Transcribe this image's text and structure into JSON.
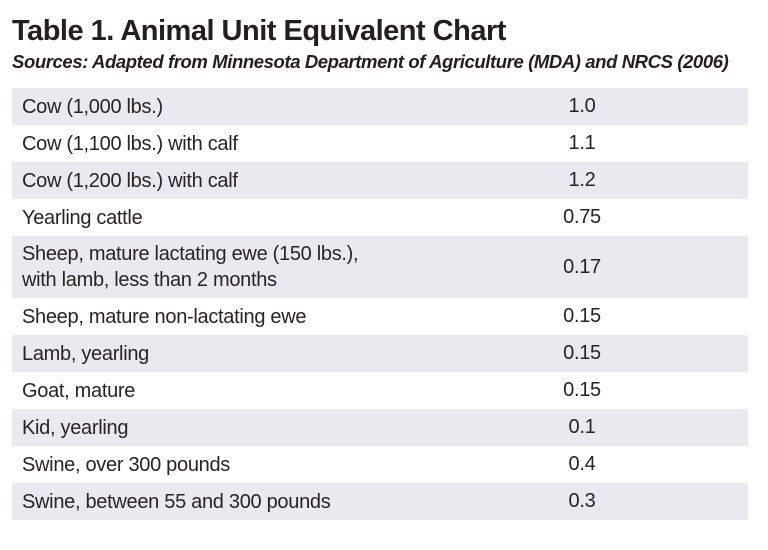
{
  "document": {
    "title": "Table 1. Animal Unit Equivalent Chart",
    "source_line": "Sources: Adapted from Minnesota Department of Agriculture (MDA) and NRCS (2006)"
  },
  "colors": {
    "row_stripe": "#e9e9ef",
    "text": "#231f20",
    "background": "#ffffff"
  },
  "table": {
    "rows": [
      {
        "label": "Cow (1,000 lbs.)",
        "value": "1.0"
      },
      {
        "label": "Cow (1,100 lbs.) with calf",
        "value": "1.1"
      },
      {
        "label": "Cow (1,200 lbs.) with calf",
        "value": "1.2"
      },
      {
        "label": "Yearling cattle",
        "value": "0.75"
      },
      {
        "label": "Sheep, mature lactating ewe (150 lbs.),\nwith lamb, less than 2 months",
        "value": "0.17"
      },
      {
        "label": "Sheep, mature non-lactating ewe",
        "value": "0.15"
      },
      {
        "label": "Lamb, yearling",
        "value": "0.15"
      },
      {
        "label": "Goat, mature",
        "value": "0.15"
      },
      {
        "label": "Kid, yearling",
        "value": "0.1"
      },
      {
        "label": "Swine, over 300 pounds",
        "value": "0.4"
      },
      {
        "label": "Swine, between 55 and 300 pounds",
        "value": "0.3"
      }
    ]
  }
}
